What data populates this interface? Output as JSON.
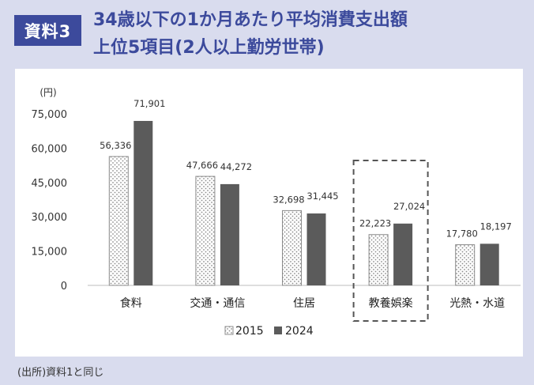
{
  "badge": "資料3",
  "title_line1": "34歳以下の1か月あたり平均消費支出額",
  "title_line2": "上位5項目(2人以上勤労世帯)",
  "source": "(出所)資料1と同じ",
  "chart_data": {
    "type": "bar",
    "unit_label": "(円)",
    "categories": [
      "食料",
      "交通・通信",
      "住居",
      "教養娯楽",
      "光熱・水道"
    ],
    "series": [
      {
        "name": "2015",
        "values": [
          56336,
          47666,
          32698,
          22223,
          17780
        ],
        "labels": [
          "56,336",
          "47,666",
          "32,698",
          "22,223",
          "17,780"
        ],
        "color": "#ffffff",
        "pattern": "dotted"
      },
      {
        "name": "2024",
        "values": [
          71901,
          44272,
          31445,
          27024,
          18197
        ],
        "labels": [
          "71,901",
          "44,272",
          "31,445",
          "27,024",
          "18,197"
        ],
        "color": "#5b5b5b",
        "pattern": "solid"
      }
    ],
    "yticks": [
      "0",
      "15,000",
      "30,000",
      "45,000",
      "60,000",
      "75,000"
    ],
    "ylim": [
      0,
      75000
    ],
    "highlighted_category": "教養娯楽",
    "legend_position": "bottom"
  }
}
